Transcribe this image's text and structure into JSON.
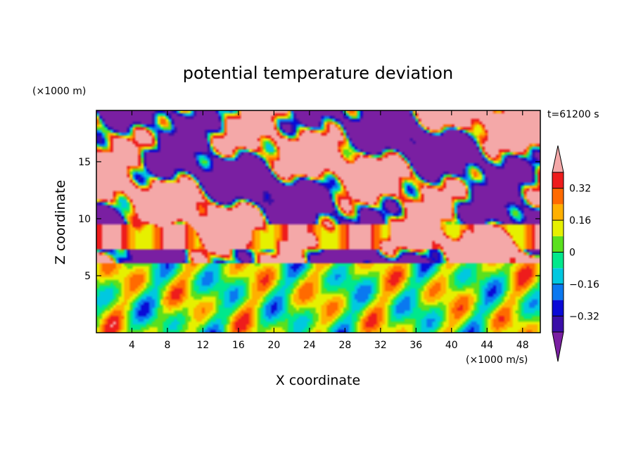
{
  "chart_data": {
    "type": "heatmap",
    "title": "potential temperature deviation",
    "xlabel": "X coordinate",
    "ylabel": "Z coordinate",
    "x_unit": "(×1000 m/s)",
    "y_unit": "(×1000 m)",
    "time_label": "t=61200 s",
    "xlim": [
      0,
      50
    ],
    "ylim": [
      0,
      19.5
    ],
    "x_ticks": [
      4,
      8,
      12,
      16,
      20,
      24,
      28,
      32,
      36,
      40,
      44,
      48
    ],
    "y_ticks": [
      5,
      10,
      15
    ],
    "colorbar": {
      "levels": [
        -0.4,
        -0.32,
        -0.24,
        -0.16,
        -0.08,
        0,
        0.08,
        0.16,
        0.24,
        0.32,
        0.4
      ],
      "tick_labels": [
        "0.32",
        "0.16",
        "0",
        "−0.16",
        "−0.32"
      ],
      "tick_values": [
        0.32,
        0.16,
        0,
        -0.16,
        -0.32
      ],
      "colors": [
        "#7a1fa2",
        "#3a0fa8",
        "#0a0ad6",
        "#0a78f0",
        "#00c8e0",
        "#00e88c",
        "#5ae01e",
        "#e6f000",
        "#ffb000",
        "#ff6a00",
        "#ee1c1c",
        "#f4a8a8"
      ],
      "extend": "both"
    }
  }
}
